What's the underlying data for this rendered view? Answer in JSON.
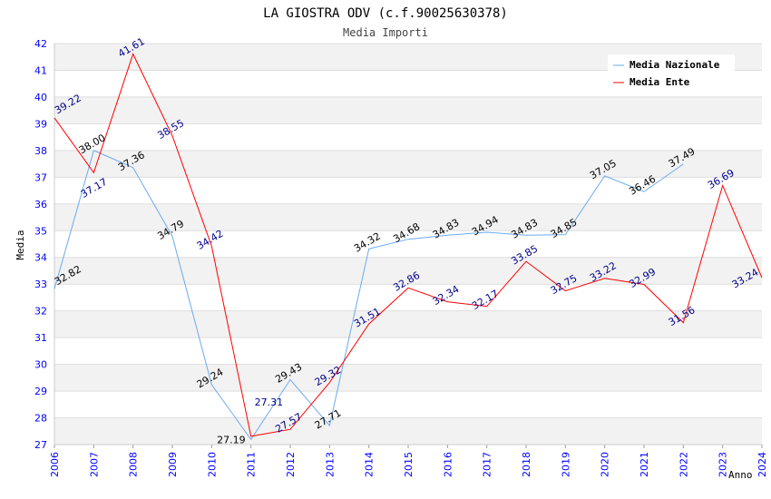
{
  "chart_data": {
    "type": "line",
    "title": "LA GIOSTRA ODV (c.f.90025630378)",
    "subtitle": "Media Importi",
    "xlabel": "Anno",
    "ylabel": "Media",
    "xlim": [
      2006,
      2024
    ],
    "ylim": [
      27,
      42
    ],
    "x_ticks": [
      "2006",
      "2007",
      "2008",
      "2009",
      "2010",
      "2011",
      "2012",
      "2013",
      "2014",
      "2015",
      "2016",
      "2017",
      "2018",
      "2019",
      "2020",
      "2021",
      "2022",
      "2023",
      "2024"
    ],
    "y_ticks": [
      "27",
      "28",
      "29",
      "30",
      "31",
      "32",
      "33",
      "34",
      "35",
      "36",
      "37",
      "38",
      "39",
      "40",
      "41",
      "42"
    ],
    "grid": true,
    "legend_position": "top-right",
    "series": [
      {
        "name": "Media Nazionale",
        "color": "#6aaaf0",
        "label_color": "#000000",
        "x": [
          2006,
          2007,
          2008,
          2009,
          2010,
          2011,
          2012,
          2013,
          2014,
          2015,
          2016,
          2017,
          2018,
          2019,
          2020,
          2021,
          2022
        ],
        "values": [
          32.82,
          38.0,
          37.36,
          34.79,
          29.24,
          27.19,
          29.43,
          27.71,
          34.32,
          34.68,
          34.83,
          34.94,
          34.83,
          34.85,
          37.05,
          36.46,
          37.49
        ],
        "labels": [
          "32.82",
          "38.00",
          "37.36",
          "34.79",
          "29.24",
          "27.19",
          "29.43",
          "27.71",
          "34.32",
          "34.68",
          "34.83",
          "34.94",
          "34.83",
          "34.85",
          "37.05",
          "36.46",
          "37.49"
        ]
      },
      {
        "name": "Media Ente",
        "color": "#ff0000",
        "label_color": "#00008b",
        "x": [
          2006,
          2007,
          2008,
          2009,
          2010,
          2011,
          2012,
          2013,
          2014,
          2015,
          2016,
          2017,
          2018,
          2019,
          2020,
          2021,
          2022,
          2023,
          2024
        ],
        "values": [
          39.22,
          37.17,
          41.61,
          38.55,
          34.42,
          27.31,
          27.57,
          29.32,
          31.51,
          32.86,
          32.34,
          32.17,
          33.85,
          32.75,
          33.22,
          32.99,
          31.56,
          36.69,
          33.24
        ],
        "labels": [
          "39.22",
          "37.17",
          "41.61",
          "38.55",
          "34.42",
          "27.31",
          "27.57",
          "29.32",
          "31.51",
          "32.86",
          "32.34",
          "32.17",
          "33.85",
          "32.75",
          "33.22",
          "32.99",
          "31.56",
          "36.69",
          "33.24"
        ]
      }
    ]
  }
}
